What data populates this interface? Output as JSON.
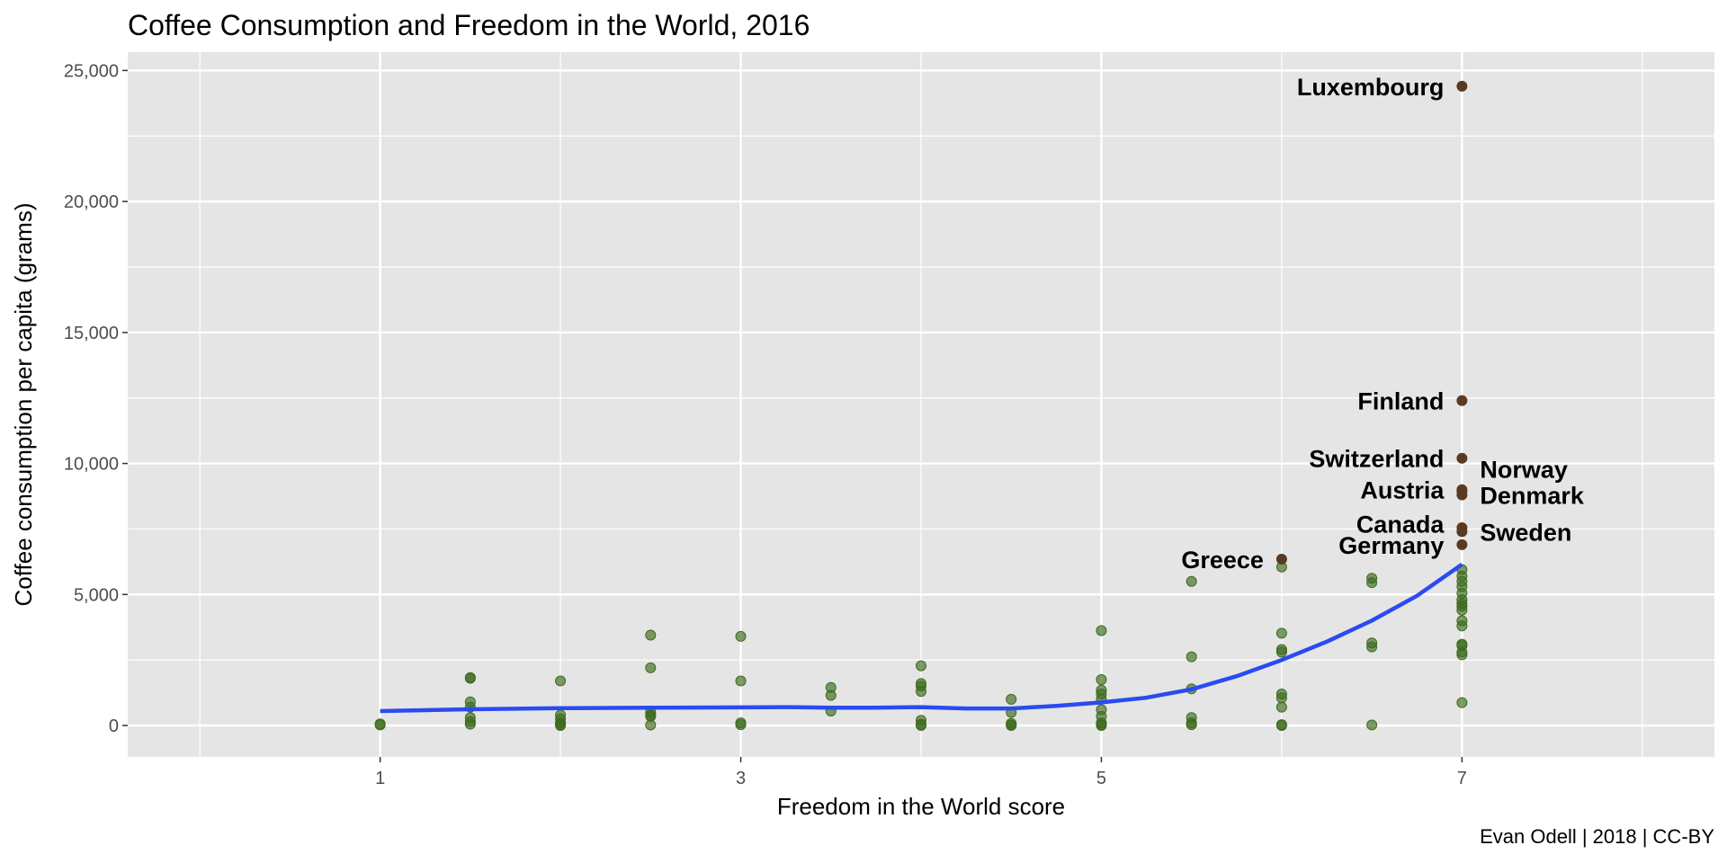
{
  "chart_data": {
    "type": "scatter",
    "title": "Coffee Consumption and Freedom in the World, 2016",
    "xlabel": "Freedom in the World score",
    "ylabel": "Coffee consumption per capita (grams)",
    "caption": "Evan Odell | 2018 | CC-BY",
    "xlim": [
      -0.4,
      8.4
    ],
    "ylim": [
      -1200,
      25700
    ],
    "x_ticks": [
      1,
      3,
      5,
      7
    ],
    "x_tick_labels": [
      "1",
      "3",
      "5",
      "7"
    ],
    "x_minor_gridlines": [
      0,
      2,
      4,
      6,
      8
    ],
    "y_ticks": [
      0,
      5000,
      10000,
      15000,
      20000,
      25000
    ],
    "y_tick_labels": [
      "0",
      "5,000",
      "10,000",
      "15,000",
      "20,000",
      "25,000"
    ],
    "y_minor_gridlines": [
      2500,
      7500,
      12500,
      17500,
      22500
    ],
    "grid": true,
    "colors": {
      "panel": "#e5e5e5",
      "grid": "#ffffff",
      "point": "#3d6b1e",
      "highlight_point": "#5b3a22",
      "smooth": "#2a4bf0"
    },
    "series": [
      {
        "points": [
          {
            "x": 1,
            "y": 20
          },
          {
            "x": 1,
            "y": 60
          },
          {
            "x": 1.5,
            "y": 1830
          },
          {
            "x": 1.5,
            "y": 1800
          },
          {
            "x": 1.5,
            "y": 900
          },
          {
            "x": 1.5,
            "y": 700
          },
          {
            "x": 1.5,
            "y": 300
          },
          {
            "x": 1.5,
            "y": 150
          },
          {
            "x": 1.5,
            "y": 50
          },
          {
            "x": 2,
            "y": 1700
          },
          {
            "x": 2,
            "y": 400
          },
          {
            "x": 2,
            "y": 250
          },
          {
            "x": 2,
            "y": 100
          },
          {
            "x": 2,
            "y": 30
          },
          {
            "x": 2,
            "y": 0
          },
          {
            "x": 2.5,
            "y": 3450
          },
          {
            "x": 2.5,
            "y": 2200
          },
          {
            "x": 2.5,
            "y": 500
          },
          {
            "x": 2.5,
            "y": 400
          },
          {
            "x": 2.5,
            "y": 350
          },
          {
            "x": 2.5,
            "y": 20
          },
          {
            "x": 3,
            "y": 3400
          },
          {
            "x": 3,
            "y": 1700
          },
          {
            "x": 3,
            "y": 100
          },
          {
            "x": 3,
            "y": 30
          },
          {
            "x": 3.5,
            "y": 1450
          },
          {
            "x": 3.5,
            "y": 1150
          },
          {
            "x": 3.5,
            "y": 550
          },
          {
            "x": 4,
            "y": 2280
          },
          {
            "x": 4,
            "y": 1600
          },
          {
            "x": 4,
            "y": 1500
          },
          {
            "x": 4,
            "y": 1300
          },
          {
            "x": 4,
            "y": 200
          },
          {
            "x": 4,
            "y": 50
          },
          {
            "x": 4,
            "y": 0
          },
          {
            "x": 4.5,
            "y": 1000
          },
          {
            "x": 4.5,
            "y": 500
          },
          {
            "x": 4.5,
            "y": 80
          },
          {
            "x": 4.5,
            "y": 20
          },
          {
            "x": 4.5,
            "y": 0
          },
          {
            "x": 5,
            "y": 3620
          },
          {
            "x": 5,
            "y": 1750
          },
          {
            "x": 5,
            "y": 1350
          },
          {
            "x": 5,
            "y": 1200
          },
          {
            "x": 5,
            "y": 1000
          },
          {
            "x": 5,
            "y": 600
          },
          {
            "x": 5,
            "y": 350
          },
          {
            "x": 5,
            "y": 100
          },
          {
            "x": 5,
            "y": 30
          },
          {
            "x": 5,
            "y": 0
          },
          {
            "x": 5.5,
            "y": 5500
          },
          {
            "x": 5.5,
            "y": 2620
          },
          {
            "x": 5.5,
            "y": 1400
          },
          {
            "x": 5.5,
            "y": 300
          },
          {
            "x": 5.5,
            "y": 100
          },
          {
            "x": 5.5,
            "y": 30
          },
          {
            "x": 6,
            "y": 6050
          },
          {
            "x": 6,
            "y": 3520
          },
          {
            "x": 6,
            "y": 2900
          },
          {
            "x": 6,
            "y": 2800
          },
          {
            "x": 6,
            "y": 1200
          },
          {
            "x": 6,
            "y": 1050
          },
          {
            "x": 6,
            "y": 700
          },
          {
            "x": 6,
            "y": 30
          },
          {
            "x": 6,
            "y": 0
          },
          {
            "x": 6.5,
            "y": 5620
          },
          {
            "x": 6.5,
            "y": 5450
          },
          {
            "x": 6.5,
            "y": 3150
          },
          {
            "x": 6.5,
            "y": 3000
          },
          {
            "x": 6.5,
            "y": 20
          },
          {
            "x": 7,
            "y": 5950
          },
          {
            "x": 7,
            "y": 5700
          },
          {
            "x": 7,
            "y": 5500
          },
          {
            "x": 7,
            "y": 5300
          },
          {
            "x": 7,
            "y": 5050
          },
          {
            "x": 7,
            "y": 4800
          },
          {
            "x": 7,
            "y": 4650
          },
          {
            "x": 7,
            "y": 4550
          },
          {
            "x": 7,
            "y": 4400
          },
          {
            "x": 7,
            "y": 4000
          },
          {
            "x": 7,
            "y": 3800
          },
          {
            "x": 7,
            "y": 3100
          },
          {
            "x": 7,
            "y": 3050
          },
          {
            "x": 7,
            "y": 2800
          },
          {
            "x": 7,
            "y": 2700
          },
          {
            "x": 7,
            "y": 870
          }
        ]
      }
    ],
    "highlighted": [
      {
        "label": "Luxembourg",
        "x": 7,
        "y": 24400,
        "label_side": "left",
        "label_y": 24400
      },
      {
        "label": "Finland",
        "x": 7,
        "y": 12400,
        "label_side": "left",
        "label_y": 12400
      },
      {
        "label": "Switzerland",
        "x": 7,
        "y": 10200,
        "label_side": "left",
        "label_y": 10200
      },
      {
        "label": "Norway",
        "x": 7,
        "y": 9000,
        "label_side": "right",
        "label_y": 9800
      },
      {
        "label": "Austria",
        "x": 7,
        "y": 8950,
        "label_side": "left",
        "label_y": 9000
      },
      {
        "label": "Denmark",
        "x": 7,
        "y": 8800,
        "label_side": "right",
        "label_y": 8800
      },
      {
        "label": "Canada",
        "x": 7,
        "y": 7550,
        "label_side": "left",
        "label_y": 7700
      },
      {
        "label": "Sweden",
        "x": 7,
        "y": 7400,
        "label_side": "right",
        "label_y": 7400
      },
      {
        "label": "Germany",
        "x": 7,
        "y": 6900,
        "label_side": "left",
        "label_y": 6900
      },
      {
        "label": "Greece",
        "x": 6,
        "y": 6350,
        "label_side": "left",
        "label_y": 6350
      }
    ],
    "smooth_line": {
      "x": [
        1,
        1.5,
        2,
        2.5,
        3,
        3.25,
        3.5,
        3.75,
        4,
        4.25,
        4.5,
        4.75,
        5,
        5.25,
        5.5,
        5.75,
        6,
        6.25,
        6.5,
        6.75,
        7
      ],
      "y": [
        550,
        620,
        660,
        680,
        690,
        700,
        680,
        680,
        700,
        650,
        650,
        750,
        880,
        1060,
        1380,
        1880,
        2500,
        3200,
        4000,
        4950,
        6150
      ]
    }
  }
}
